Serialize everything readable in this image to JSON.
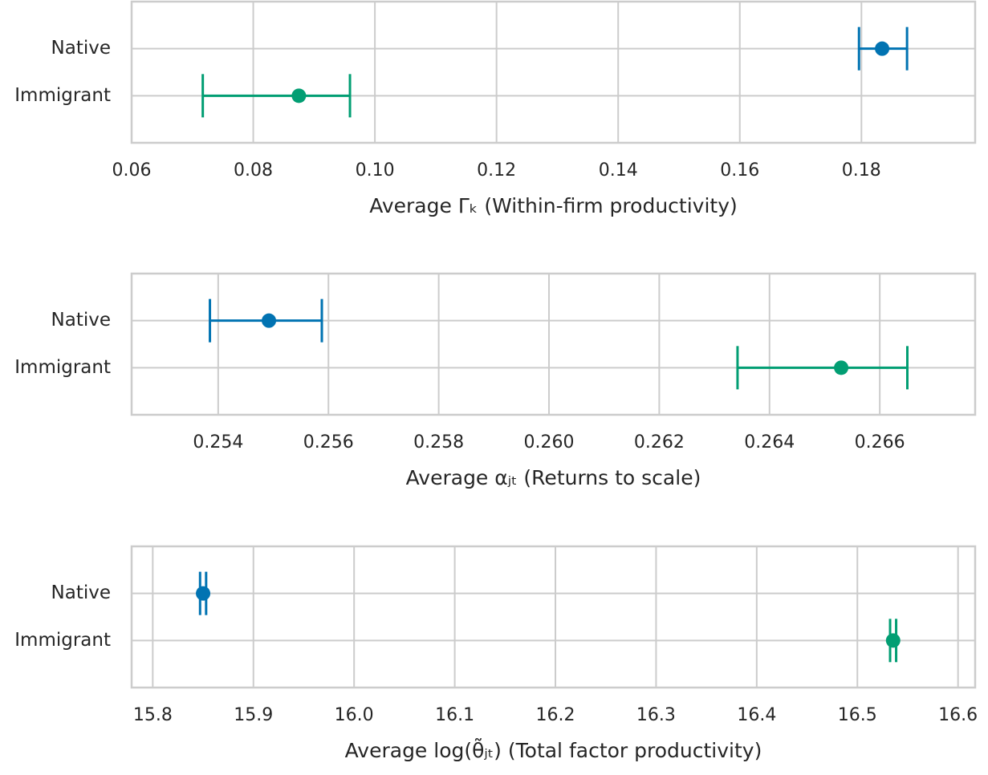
{
  "chart_data": [
    {
      "type": "errorbar",
      "categories": [
        "Native",
        "Immigrant"
      ],
      "values": [
        0.1834,
        0.0875
      ],
      "lower": [
        0.1796,
        0.0717
      ],
      "upper": [
        0.1875,
        0.0959
      ],
      "colors": [
        "#0173b2",
        "#029e73"
      ],
      "xlabel": "Average Γₖ (Within-firm productivity)",
      "xlim": [
        0.06,
        0.1987
      ],
      "xticks": [
        0.06,
        0.08,
        {
          "value": 0.1,
          "label": "0.10"
        },
        0.12,
        0.14,
        0.16,
        0.18
      ],
      "grid": true
    },
    {
      "type": "errorbar",
      "categories": [
        "Native",
        "Immigrant"
      ],
      "values": [
        0.25492,
        0.2653
      ],
      "lower": [
        0.25385,
        0.26342
      ],
      "upper": [
        0.25588,
        0.2665
      ],
      "colors": [
        "#0173b2",
        "#029e73"
      ],
      "xlabel": "Average αⱼₜ (Returns to scale)",
      "xlim": [
        0.25243,
        0.26773
      ],
      "xticks": [
        0.254,
        0.256,
        0.258,
        {
          "value": 0.26,
          "label": "0.260"
        },
        0.262,
        0.264,
        0.266
      ],
      "grid": true
    },
    {
      "type": "errorbar",
      "categories": [
        "Native",
        "Immigrant"
      ],
      "values": [
        15.85,
        16.5355
      ],
      "lower": [
        15.847,
        16.5325
      ],
      "upper": [
        15.853,
        16.5385
      ],
      "colors": [
        "#0173b2",
        "#029e73"
      ],
      "xlabel": "Average log(θ̃ⱼₜ) (Total factor productivity)",
      "xlim": [
        15.779,
        16.617
      ],
      "xticks": [
        15.8,
        15.9,
        {
          "value": 16,
          "label": "16.0"
        },
        16.1,
        16.2,
        16.3,
        16.4,
        16.5,
        16.6
      ],
      "grid": true
    }
  ]
}
